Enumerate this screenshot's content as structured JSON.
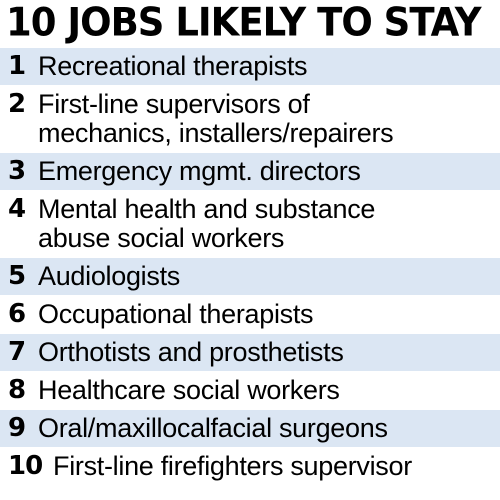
{
  "title": "10 JOBS LIKELY TO STAY",
  "jobs": [
    {
      "rank": "1",
      "line1": "Recreational therapists",
      "line2": ""
    },
    {
      "rank": "2",
      "line1": "First-line supervisors of",
      "line2": "mechanics, installers/repairers"
    },
    {
      "rank": "3",
      "line1": "Emergency mgmt. directors",
      "line2": ""
    },
    {
      "rank": "4",
      "line1": "Mental health and substance",
      "line2": "abuse social workers"
    },
    {
      "rank": "5",
      "line1": "Audiologists",
      "line2": ""
    },
    {
      "rank": "6",
      "line1": "Occupational therapists",
      "line2": ""
    },
    {
      "rank": "7",
      "line1": "Orthotists and prosthetists",
      "line2": ""
    },
    {
      "rank": "8",
      "line1": "Healthcare social workers",
      "line2": ""
    },
    {
      "rank": "9",
      "line1": "Oral/maxillocalfacial surgeons",
      "line2": ""
    },
    {
      "rank": "10",
      "line1": "First-line firefighters supervisor",
      "line2": ""
    }
  ],
  "colors": {
    "row_shade": "#dbe6f3",
    "row_plain": "#ffffff",
    "text": "#000000"
  }
}
